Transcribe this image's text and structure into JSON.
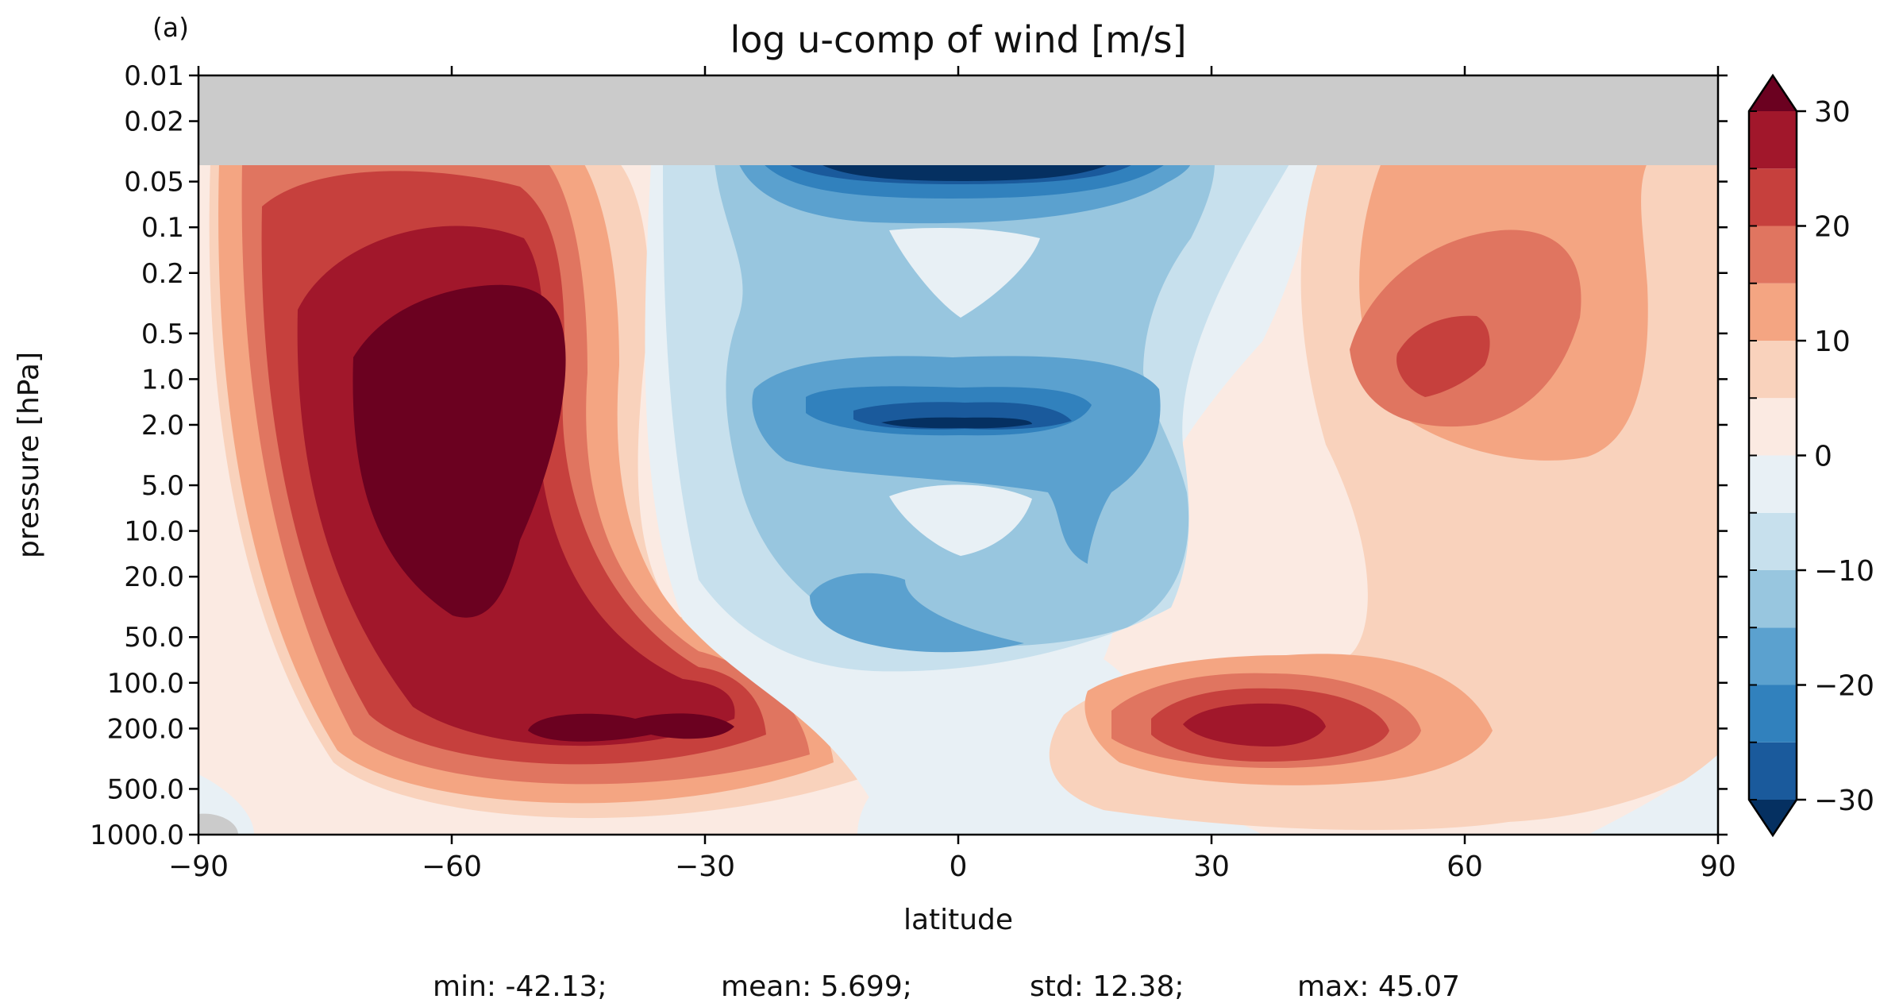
{
  "panel_label": "(a)",
  "title": "log u-comp of wind [m/s]",
  "xlabel": "latitude",
  "ylabel": "pressure [hPa]",
  "stats": {
    "min": "min: -42.13;",
    "mean": "mean: 5.699;",
    "std": "std: 12.38;",
    "max": "max: 45.07"
  },
  "chart_data": {
    "type": "heatmap",
    "subtype": "filled-contour",
    "title": "log u-comp of wind [m/s]",
    "xlabel": "latitude",
    "ylabel": "pressure [hPa]",
    "xlim": [
      -90,
      90
    ],
    "ylim": [
      1000,
      0.01
    ],
    "y_scale": "log",
    "x_ticks": [
      -90,
      -60,
      -30,
      0,
      30,
      60,
      90
    ],
    "x_tick_labels": [
      "−90",
      "−60",
      "−30",
      "0",
      "30",
      "60",
      "90"
    ],
    "y_ticks": [
      0.01,
      0.02,
      0.05,
      0.1,
      0.2,
      0.5,
      1.0,
      2.0,
      5.0,
      10.0,
      20.0,
      50.0,
      100.0,
      200.0,
      500.0,
      1000.0
    ],
    "y_tick_labels": [
      "0.01",
      "0.02",
      "0.05",
      "0.1",
      "0.2",
      "0.5",
      "1.0",
      "2.0",
      "5.0",
      "10.0",
      "20.0",
      "50.0",
      "100.0",
      "200.0",
      "500.0",
      "1000.0"
    ],
    "colorbar": {
      "levels": [
        -30,
        -25,
        -20,
        -15,
        -10,
        -5,
        0,
        5,
        10,
        15,
        20,
        25,
        30
      ],
      "ticks": [
        -30,
        -20,
        -10,
        0,
        10,
        20,
        30
      ],
      "tick_labels": [
        "−30",
        "−20",
        "−10",
        "0",
        "10",
        "20",
        "30"
      ],
      "extend": "both",
      "colors": [
        "#053061",
        "#1a5a9c",
        "#3181bd",
        "#5ba1cf",
        "#98c6df",
        "#c7e0ed",
        "#e8f0f5",
        "#fbeae2",
        "#f9d2bc",
        "#f4a582",
        "#e07560",
        "#c6403d",
        "#a1172b",
        "#6b0120"
      ]
    },
    "no_data_color": "#cbcbcb",
    "features": [
      {
        "name": "southern stratospheric jet",
        "lat": -57,
        "pressure_hPa": 1.5,
        "value_min": 30
      },
      {
        "name": "southern tropospheric jet",
        "lat": -47,
        "pressure_hPa": 200,
        "value_min": 30
      },
      {
        "name": "northern stratospheric jet",
        "lat": 57,
        "pressure_hPa": 0.8,
        "value_range": [
          20,
          25
        ]
      },
      {
        "name": "northern tropospheric jet",
        "lat": 35,
        "pressure_hPa": 200,
        "value_range": [
          25,
          30
        ]
      },
      {
        "name": "equatorial easterly maximum",
        "lat": 0,
        "pressure_hPa": 2.0,
        "value_max": -30
      },
      {
        "name": "upper equatorial easterlies",
        "lat": 2,
        "pressure_hPa": 0.05,
        "value_max": -30
      }
    ],
    "stats": {
      "min": -42.13,
      "mean": 5.699,
      "std": 12.38,
      "max": 45.07
    }
  }
}
